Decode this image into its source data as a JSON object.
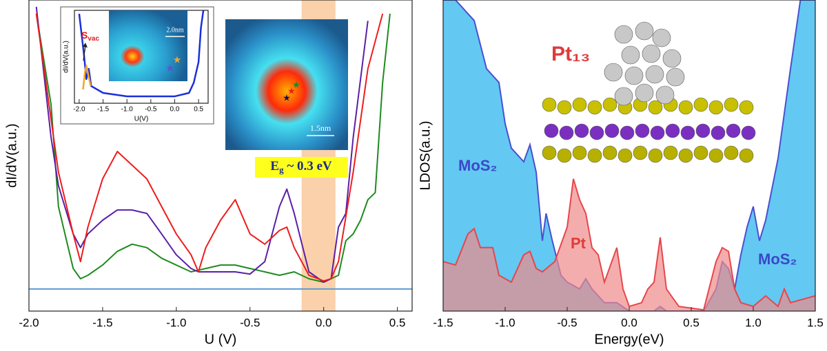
{
  "chart_data": [
    {
      "type": "line",
      "xlabel": "U (V)",
      "ylabel": "dI/dV(a.u.)",
      "xlim": [
        -2.0,
        0.6
      ],
      "xticks": [
        {
          "value": -2,
          "label": "-2.0"
        },
        -1.5,
        {
          "value": -1,
          "label": "-1.0"
        },
        -0.5,
        {
          "value": 0,
          "label": "0.0"
        },
        0.5
      ],
      "ylim": [
        0,
        10
      ],
      "band": {
        "xlim": [
          -0.15,
          0.08
        ],
        "color": "#f9c99b"
      },
      "gap_label": {
        "main": "E",
        "sub": "g",
        "rest": " ~ 0.3 eV"
      },
      "scale_labels": [
        "2.0nm",
        "1.5nm"
      ],
      "series": [
        {
          "color": "#5b9bd5",
          "x": [
            -2.0,
            0.6
          ],
          "values": [
            0.71,
            0.71
          ]
        },
        {
          "color": "#1e8a1e",
          "x": [
            -1.95,
            -1.85,
            -1.8,
            -1.7,
            -1.65,
            -1.6,
            -1.5,
            -1.4,
            -1.3,
            -1.2,
            -1.1,
            -1.0,
            -0.9,
            -0.8,
            -0.7,
            -0.6,
            -0.5,
            -0.4,
            -0.3,
            -0.2,
            -0.1,
            0,
            0.1,
            0.15,
            0.2,
            0.25,
            0.3,
            0.35,
            0.4,
            0.45
          ],
          "values": [
            9.56,
            6.64,
            3.36,
            1.37,
            1.04,
            1.15,
            1.48,
            1.92,
            2.15,
            2.04,
            1.7,
            1.48,
            1.26,
            1.37,
            1.48,
            1.48,
            1.37,
            1.26,
            1.15,
            1.26,
            1.04,
            0.93,
            1.15,
            2.26,
            2.48,
            2.92,
            3.58,
            3.81,
            7.35,
            9.56
          ]
        },
        {
          "color": "#5a1fa6",
          "x": [
            -1.95,
            -1.85,
            -1.8,
            -1.7,
            -1.65,
            -1.6,
            -1.5,
            -1.4,
            -1.3,
            -1.2,
            -1.1,
            -1.0,
            -0.9,
            -0.85,
            -0.8,
            -0.7,
            -0.6,
            -0.5,
            -0.4,
            -0.3,
            -0.25,
            -0.2,
            -0.1,
            0,
            0.05,
            0.1,
            0.15,
            0.2,
            0.3
          ],
          "values": [
            9.78,
            5.58,
            4.03,
            2.48,
            2.04,
            2.48,
            2.92,
            3.25,
            3.25,
            3.14,
            2.48,
            1.81,
            1.37,
            1.26,
            1.26,
            1.26,
            1.26,
            1.19,
            1.59,
            3.36,
            3.92,
            3.14,
            1.26,
            0.93,
            1.04,
            2.7,
            3.14,
            5.58,
            9.33
          ]
        },
        {
          "color": "#ee1c1c",
          "x": [
            -1.95,
            -1.8,
            -1.7,
            -1.65,
            -1.6,
            -1.5,
            -1.4,
            -1.3,
            -1.2,
            -1.1,
            -1.0,
            -0.9,
            -0.85,
            -0.8,
            -0.7,
            -0.6,
            -0.5,
            -0.4,
            -0.3,
            -0.25,
            -0.2,
            -0.1,
            0,
            0.05,
            0.1,
            0.2,
            0.3,
            0.4
          ],
          "values": [
            9.56,
            4.47,
            2.48,
            1.59,
            2.7,
            4.25,
            5.13,
            4.69,
            4.25,
            3.36,
            2.48,
            1.81,
            1.26,
            2.04,
            2.92,
            3.58,
            2.48,
            2.15,
            2.59,
            2.7,
            2.04,
            1.15,
            0.97,
            1.04,
            1.59,
            4.47,
            7.79,
            9.56
          ]
        }
      ]
    },
    {
      "type": "line",
      "xlabel": "U(V)",
      "ylabel": "dI/dV(a.u.)",
      "xlim": [
        -2.1,
        0.7
      ],
      "xticks": [
        {
          "value": -2,
          "label": "-2.0"
        },
        -1.5,
        {
          "value": -1,
          "label": "-1.0"
        },
        -0.5,
        {
          "value": 0,
          "label": "0.0"
        },
        0.5
      ],
      "ylim": [
        0,
        10
      ],
      "annotation": {
        "main": "S",
        "sub": "vac"
      },
      "series": [
        {
          "color": "#1a2fd8",
          "x": [
            -2.0,
            -1.9,
            -1.85,
            -1.8,
            -1.75,
            -1.5,
            -1.0,
            -0.5,
            0,
            0.3,
            0.4,
            0.5,
            0.55,
            0.6
          ],
          "values": [
            9.63,
            5.19,
            2.59,
            3.7,
            1.85,
            1.11,
            0.74,
            0.74,
            0.74,
            1.11,
            2.22,
            4.44,
            8.15,
            10
          ]
        },
        {
          "color": "#f5a623",
          "x": [
            -1.92,
            -1.88,
            -1.85,
            -1.8,
            -1.76
          ],
          "values": [
            1.48,
            3.33,
            4.07,
            2.81,
            1.85
          ]
        }
      ]
    },
    {
      "type": "area",
      "xlabel": "Energy(eV)",
      "ylabel": "LDOS(a.u.)",
      "xlim": [
        -1.5,
        1.5
      ],
      "xticks": [
        -1.5,
        {
          "value": -1,
          "label": "-1.0"
        },
        -0.5,
        {
          "value": 0,
          "label": "0.0"
        },
        0.5,
        {
          "value": 1,
          "label": "1.0"
        },
        1.5
      ],
      "ylim": [
        0,
        10
      ],
      "annotation": "Pt₁₃",
      "series": [
        {
          "name": "MoS₂",
          "color": "#4a4fd0",
          "fill": "#63c8f2",
          "x": [
            -1.5,
            -1.4,
            -1.3,
            -1.25,
            -1.15,
            -1.05,
            -1.0,
            -0.95,
            -0.85,
            -0.8,
            -0.75,
            -0.7,
            -0.67,
            -0.62,
            -0.55,
            -0.5,
            -0.4,
            -0.35,
            -0.3,
            -0.2,
            -0.1,
            0,
            0.2,
            0.25,
            0.3,
            0.6,
            0.7,
            0.75,
            0.8,
            0.85,
            0.9,
            0.95,
            1.0,
            1.05,
            1.1,
            1.2,
            1.3,
            1.38,
            1.5
          ],
          "values": [
            10,
            10,
            9.56,
            9.34,
            7.79,
            7.35,
            6.02,
            5.24,
            4.8,
            5.35,
            4.47,
            2.26,
            3.14,
            2.26,
            1.15,
            0.93,
            0.71,
            1.04,
            0.71,
            0.27,
            0.27,
            0,
            0,
            0.15,
            0,
            0,
            0.71,
            1.59,
            1.37,
            0.71,
            1.81,
            2.7,
            3.36,
            2.26,
            2.92,
            4.91,
            7.79,
            10,
            10
          ]
        },
        {
          "name": "Pt",
          "color": "#e8454a",
          "fill": "#f08a8a",
          "x": [
            -1.5,
            -1.4,
            -1.3,
            -1.25,
            -1.2,
            -1.1,
            -1.05,
            -0.95,
            -0.85,
            -0.8,
            -0.75,
            -0.7,
            -0.6,
            -0.5,
            -0.45,
            -0.4,
            -0.35,
            -0.3,
            -0.25,
            -0.2,
            -0.1,
            -0.05,
            0,
            0.1,
            0.15,
            0.2,
            0.25,
            0.3,
            0.4,
            0.6,
            0.7,
            0.75,
            0.8,
            0.85,
            0.9,
            1.0,
            1.1,
            1.2,
            1.25,
            1.3,
            1.5
          ],
          "values": [
            1.59,
            1.48,
            2.48,
            2.65,
            2.04,
            2.04,
            1.15,
            0.93,
            1.81,
            1.92,
            1.37,
            1.26,
            1.59,
            2.7,
            4.25,
            3.58,
            3.14,
            2.04,
            1.81,
            0.93,
            2.04,
            0.71,
            0.15,
            0.27,
            0.71,
            0.93,
            2.37,
            0.71,
            0.15,
            0.04,
            1.59,
            2.04,
            1.92,
            0.71,
            0.27,
            0.15,
            0.49,
            0.15,
            0.71,
            0.27,
            0.49
          ]
        }
      ]
    }
  ]
}
